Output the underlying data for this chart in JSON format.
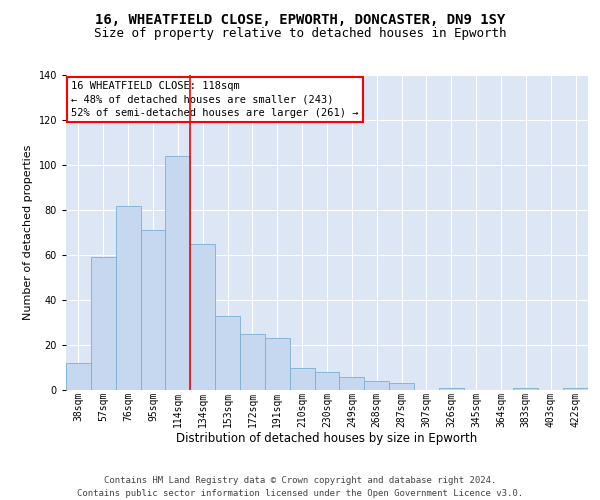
{
  "title1": "16, WHEATFIELD CLOSE, EPWORTH, DONCASTER, DN9 1SY",
  "title2": "Size of property relative to detached houses in Epworth",
  "xlabel": "Distribution of detached houses by size in Epworth",
  "ylabel": "Number of detached properties",
  "bar_values_full": [
    12,
    59,
    82,
    71,
    104,
    65,
    33,
    25,
    23,
    10,
    8,
    6,
    4,
    3,
    0,
    1,
    0,
    0,
    1,
    0,
    1
  ],
  "categories": [
    "38sqm",
    "57sqm",
    "76sqm",
    "95sqm",
    "114sqm",
    "134sqm",
    "153sqm",
    "172sqm",
    "191sqm",
    "210sqm",
    "230sqm",
    "249sqm",
    "268sqm",
    "287sqm",
    "307sqm",
    "326sqm",
    "345sqm",
    "364sqm",
    "383sqm",
    "403sqm",
    "422sqm"
  ],
  "bar_color": "#c5d8ef",
  "bar_edge_color": "#7bafd4",
  "vline_x": 4.5,
  "vline_color": "red",
  "annotation_box_text": "16 WHEATFIELD CLOSE: 118sqm\n← 48% of detached houses are smaller (243)\n52% of semi-detached houses are larger (261) →",
  "box_edge_color": "red",
  "box_face_color": "white",
  "footer_text": "Contains HM Land Registry data © Crown copyright and database right 2024.\nContains public sector information licensed under the Open Government Licence v3.0.",
  "ylim": [
    0,
    140
  ],
  "background_color": "#dce6f5",
  "grid_color": "white",
  "title1_fontsize": 10,
  "title2_fontsize": 9,
  "xlabel_fontsize": 8.5,
  "ylabel_fontsize": 8,
  "tick_fontsize": 7,
  "annotation_fontsize": 7.5,
  "footer_fontsize": 6.5
}
